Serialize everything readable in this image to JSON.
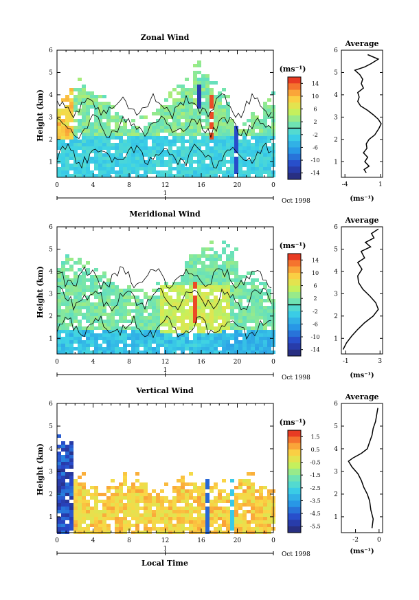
{
  "figure": {
    "xlabel": "Local Time",
    "ylabel": "Height (km)",
    "x_ticks": [
      "0",
      "4",
      "8",
      "12",
      "16",
      "20",
      "0"
    ],
    "date_tick": "1",
    "date_label": "Oct 1998"
  },
  "chart_data": [
    {
      "type": "heatmap",
      "title": "Zonal Wind",
      "ylabel": "Height (km)",
      "xlim": [
        0,
        24
      ],
      "ylim": [
        0.3,
        6
      ],
      "y_ticks": [
        "1",
        "2",
        "3",
        "4",
        "5",
        "6"
      ],
      "colorbar": {
        "unit": "(ms⁻¹)",
        "tick_labels": [
          "14",
          "10",
          "6",
          "2",
          "-2",
          "-6",
          "-10",
          "-14"
        ],
        "range": [
          -16,
          16
        ],
        "zero_line": 0
      },
      "average_profile": {
        "title": "Average",
        "xlabel": "(ms⁻¹)",
        "x_ticks": [
          "-4",
          "1"
        ],
        "xlim": [
          -4.5,
          1.3
        ],
        "points": [
          [
            -1.0,
            0.5
          ],
          [
            -1.3,
            0.65
          ],
          [
            -0.6,
            0.8
          ],
          [
            -1.2,
            1.0
          ],
          [
            -0.8,
            1.2
          ],
          [
            -1.4,
            1.4
          ],
          [
            -0.9,
            1.6
          ],
          [
            -1.0,
            1.8
          ],
          [
            -0.6,
            2.0
          ],
          [
            0.2,
            2.2
          ],
          [
            0.8,
            2.5
          ],
          [
            1.1,
            2.7
          ],
          [
            0.7,
            2.9
          ],
          [
            0.0,
            3.1
          ],
          [
            -0.8,
            3.3
          ],
          [
            -1.8,
            3.5
          ],
          [
            -2.2,
            3.7
          ],
          [
            -2.0,
            3.9
          ],
          [
            -2.2,
            4.1
          ],
          [
            -1.4,
            4.3
          ],
          [
            -1.7,
            4.5
          ],
          [
            -1.5,
            4.7
          ],
          [
            -1.9,
            4.9
          ],
          [
            -2.6,
            5.1
          ],
          [
            -1.2,
            5.25
          ],
          [
            -0.3,
            5.4
          ],
          [
            0.7,
            5.6
          ],
          [
            -0.8,
            5.8
          ]
        ]
      }
    },
    {
      "type": "heatmap",
      "title": "Meridional Wind",
      "ylabel": "Height (km)",
      "xlim": [
        0,
        24
      ],
      "ylim": [
        0.3,
        6
      ],
      "y_ticks": [
        "1",
        "2",
        "3",
        "4",
        "5",
        "6"
      ],
      "colorbar": {
        "unit": "(ms⁻¹)",
        "tick_labels": [
          "14",
          "10",
          "6",
          "2",
          "-2",
          "-6",
          "-10",
          "-14"
        ],
        "range": [
          -16,
          16
        ],
        "zero_line": 0
      },
      "average_profile": {
        "title": "Average",
        "xlabel": "(ms⁻¹)",
        "x_ticks": [
          "-1",
          "3"
        ],
        "xlim": [
          -1.5,
          3.3
        ],
        "points": [
          [
            -1.3,
            0.5
          ],
          [
            -0.9,
            0.8
          ],
          [
            -0.3,
            1.1
          ],
          [
            0.4,
            1.4
          ],
          [
            1.2,
            1.7
          ],
          [
            2.2,
            2.0
          ],
          [
            2.8,
            2.3
          ],
          [
            2.5,
            2.6
          ],
          [
            1.8,
            2.9
          ],
          [
            1.0,
            3.2
          ],
          [
            0.5,
            3.5
          ],
          [
            0.4,
            3.8
          ],
          [
            0.9,
            4.1
          ],
          [
            0.4,
            4.4
          ],
          [
            1.2,
            4.6
          ],
          [
            0.8,
            4.9
          ],
          [
            1.9,
            5.1
          ],
          [
            1.3,
            5.3
          ],
          [
            2.3,
            5.5
          ],
          [
            2.0,
            5.7
          ],
          [
            2.8,
            5.9
          ]
        ]
      }
    },
    {
      "type": "heatmap",
      "title": "Vertical Wind",
      "ylabel": "Height (km)",
      "xlim": [
        0,
        24
      ],
      "ylim": [
        0.3,
        6
      ],
      "y_ticks": [
        "1",
        "2",
        "3",
        "4",
        "5",
        "6"
      ],
      "colorbar": {
        "unit": "(ms⁻¹)",
        "tick_labels": [
          "1.5",
          "0.5",
          "-0.5",
          "-1.5",
          "-2.5",
          "-3.5",
          "-4.5",
          "-5.5"
        ],
        "range": [
          -6,
          2
        ]
      },
      "average_profile": {
        "title": "Average",
        "xlabel": "(ms⁻¹)",
        "x_ticks": [
          "-2",
          "0"
        ],
        "xlim": [
          -3.2,
          0.3
        ],
        "points": [
          [
            -0.6,
            0.5
          ],
          [
            -0.5,
            0.9
          ],
          [
            -0.7,
            1.3
          ],
          [
            -0.8,
            1.7
          ],
          [
            -1.0,
            2.0
          ],
          [
            -1.3,
            2.3
          ],
          [
            -1.5,
            2.6
          ],
          [
            -1.8,
            2.9
          ],
          [
            -2.3,
            3.2
          ],
          [
            -2.6,
            3.45
          ],
          [
            -2.2,
            3.6
          ],
          [
            -1.5,
            3.8
          ],
          [
            -1.0,
            4.0
          ],
          [
            -0.8,
            4.3
          ],
          [
            -0.6,
            4.6
          ],
          [
            -0.5,
            4.9
          ],
          [
            -0.3,
            5.2
          ],
          [
            -0.2,
            5.5
          ],
          [
            -0.1,
            5.8
          ]
        ]
      }
    }
  ]
}
